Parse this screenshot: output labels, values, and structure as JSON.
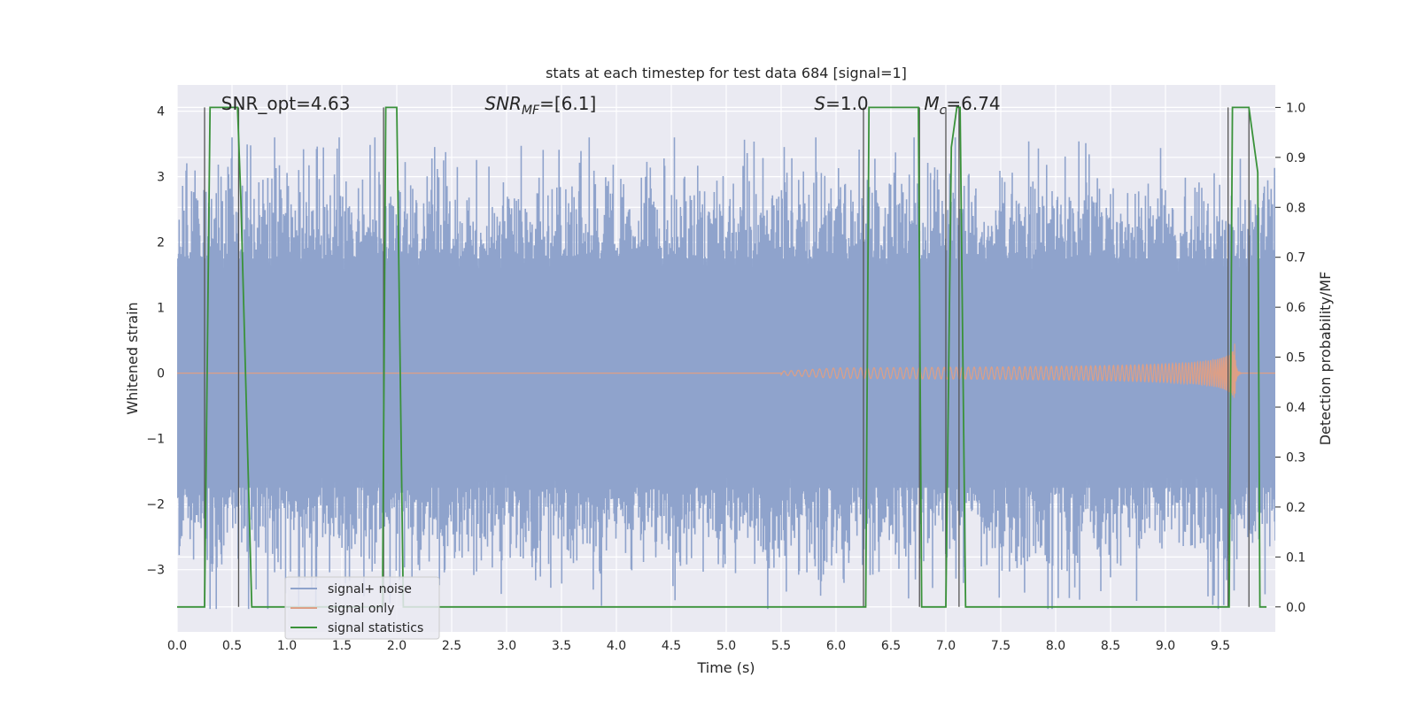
{
  "chart_data": {
    "type": "line",
    "title": "stats at each timestep for test data 684 [signal=1]",
    "xlabel": "Time (s)",
    "ylabel": "Whitened strain",
    "y2label": "Detection probability/MF",
    "xlim": [
      0.0,
      10.0
    ],
    "ylim": [
      -3.95,
      4.4
    ],
    "y2lim": [
      -0.05,
      1.045
    ],
    "xticks": [
      "0.0",
      "0.5",
      "1.0",
      "1.5",
      "2.0",
      "2.5",
      "3.0",
      "3.5",
      "4.0",
      "4.5",
      "5.0",
      "5.5",
      "6.0",
      "6.5",
      "7.0",
      "7.5",
      "8.0",
      "8.5",
      "9.0",
      "9.5"
    ],
    "yticks": [
      "4",
      "3",
      "2",
      "1",
      "0",
      "−1",
      "−2",
      "−3"
    ],
    "y2ticks": [
      "1.0",
      "0.9",
      "0.8",
      "0.7",
      "0.6",
      "0.5",
      "0.4",
      "0.3",
      "0.2",
      "0.1",
      "0.0"
    ],
    "grid": true,
    "legend_position": "lower-left",
    "annotations": [
      {
        "parts": [
          {
            "t": "SNR_opt=4.63",
            "i": false
          }
        ],
        "x": 0.2
      },
      {
        "parts": [
          {
            "t": "SNR",
            "i": true
          },
          {
            "t": "MF",
            "i": true,
            "sub": true
          },
          {
            "t": "=[6.1]",
            "i": false
          }
        ],
        "x": 2.6
      },
      {
        "parts": [
          {
            "t": "S",
            "i": true
          },
          {
            "t": "=1.0",
            "i": false
          }
        ],
        "x": 5.6
      },
      {
        "parts": [
          {
            "t": "M",
            "i": true
          },
          {
            "t": "c",
            "i": true,
            "sub": true
          },
          {
            "t": "=6.74",
            "i": false
          }
        ],
        "x": 6.6
      }
    ],
    "series": [
      {
        "name": "signal+ noise",
        "color": "#8fa3cc",
        "kind": "noise",
        "core_band": [
          -1.75,
          1.75
        ],
        "approx_range": [
          -3.6,
          3.6
        ]
      },
      {
        "name": "signal only",
        "color": "#dd9f86",
        "kind": "chirp",
        "x_start": 5.5,
        "x_peak": 9.63,
        "peak_amplitude": 0.45
      },
      {
        "name": "signal statistics",
        "color": "#3a923a",
        "axis": "right",
        "x": [
          0.0,
          0.25,
          0.3,
          0.55,
          0.58,
          0.68,
          1.87,
          1.9,
          1.95,
          2.0,
          2.06,
          6.27,
          6.3,
          6.75,
          6.78,
          7.0,
          7.05,
          7.1,
          7.13,
          7.18,
          9.58,
          9.61,
          9.72,
          9.76,
          9.84,
          9.86,
          9.92
        ],
        "values": [
          0.0,
          0.0,
          1.0,
          1.0,
          0.82,
          0.0,
          0.0,
          1.0,
          1.0,
          1.0,
          0.0,
          0.0,
          1.0,
          1.0,
          0.0,
          0.0,
          0.92,
          1.0,
          1.0,
          0.0,
          0.0,
          1.0,
          1.0,
          1.0,
          0.87,
          0.0,
          0.0
        ]
      }
    ],
    "vertical_markers": [
      0.25,
      0.56,
      1.88,
      6.25,
      6.76,
      7.0,
      7.12,
      9.57,
      9.76
    ]
  }
}
